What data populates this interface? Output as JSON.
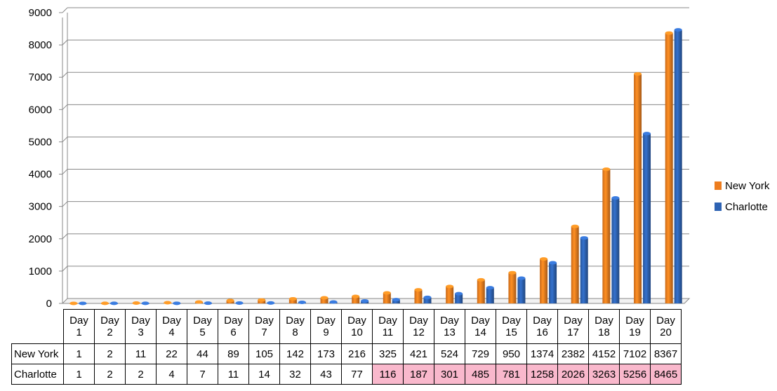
{
  "chart_data": {
    "type": "bar",
    "categories": [
      "Day 1",
      "Day 2",
      "Day 3",
      "Day 4",
      "Day 5",
      "Day 6",
      "Day 7",
      "Day 8",
      "Day 9",
      "Day 10",
      "Day 11",
      "Day 12",
      "Day 13",
      "Day 14",
      "Day 15",
      "Day 16",
      "Day 17",
      "Day 18",
      "Day 19",
      "Day 20"
    ],
    "series": [
      {
        "name": "New York",
        "color": "#ed7d1f",
        "values": [
          1,
          2,
          11,
          22,
          44,
          89,
          105,
          142,
          173,
          216,
          325,
          421,
          524,
          729,
          950,
          1374,
          2382,
          4152,
          7102,
          8367
        ]
      },
      {
        "name": "Charlotte",
        "color": "#2e63b3",
        "values": [
          1,
          2,
          2,
          4,
          7,
          11,
          14,
          32,
          43,
          77,
          116,
          187,
          301,
          485,
          781,
          1258,
          2026,
          3263,
          5256,
          8465
        ]
      }
    ],
    "yticks": [
      "0",
      "1000",
      "2000",
      "3000",
      "4000",
      "5000",
      "6000",
      "7000",
      "8000",
      "9000"
    ],
    "ylim": [
      0,
      9000
    ],
    "grid": true,
    "legend": "right",
    "data_table": true,
    "highlight_color": "#f9b8cc",
    "highlighted_charlotte_days": [
      "Day 11",
      "Day 12",
      "Day 13",
      "Day 14",
      "Day 15",
      "Day 16",
      "Day 17",
      "Day 18",
      "Day 19",
      "Day 20"
    ]
  }
}
